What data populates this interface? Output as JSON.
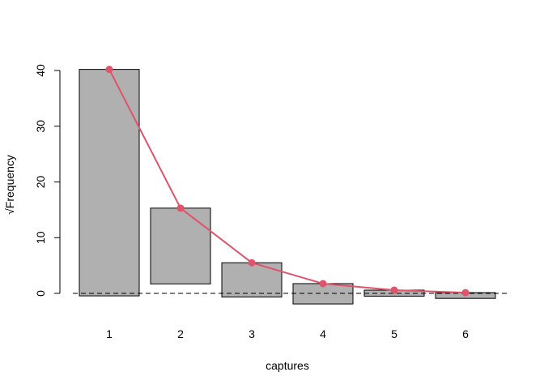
{
  "chart_data": {
    "type": "bar",
    "subtype": "hanging rootogram",
    "xlabel": "captures",
    "ylabel": "√Frequency",
    "categories": [
      "1",
      "2",
      "3",
      "4",
      "5",
      "6"
    ],
    "series": [
      {
        "kind": "bars",
        "top": [
          40.2,
          15.3,
          5.5,
          1.75,
          0.58,
          0.13
        ],
        "bottom": [
          -0.45,
          1.7,
          -0.65,
          -1.9,
          -0.5,
          -0.9
        ]
      },
      {
        "kind": "line",
        "values": [
          40.2,
          15.3,
          5.5,
          1.75,
          0.58,
          0.13
        ]
      }
    ],
    "yticks": [
      0,
      10,
      20,
      30,
      40
    ],
    "reference_line": 0,
    "grid": false,
    "colors": {
      "bar_fill": "#b0b0b0",
      "bar_edge": "#000000",
      "line": "#df536b"
    }
  }
}
